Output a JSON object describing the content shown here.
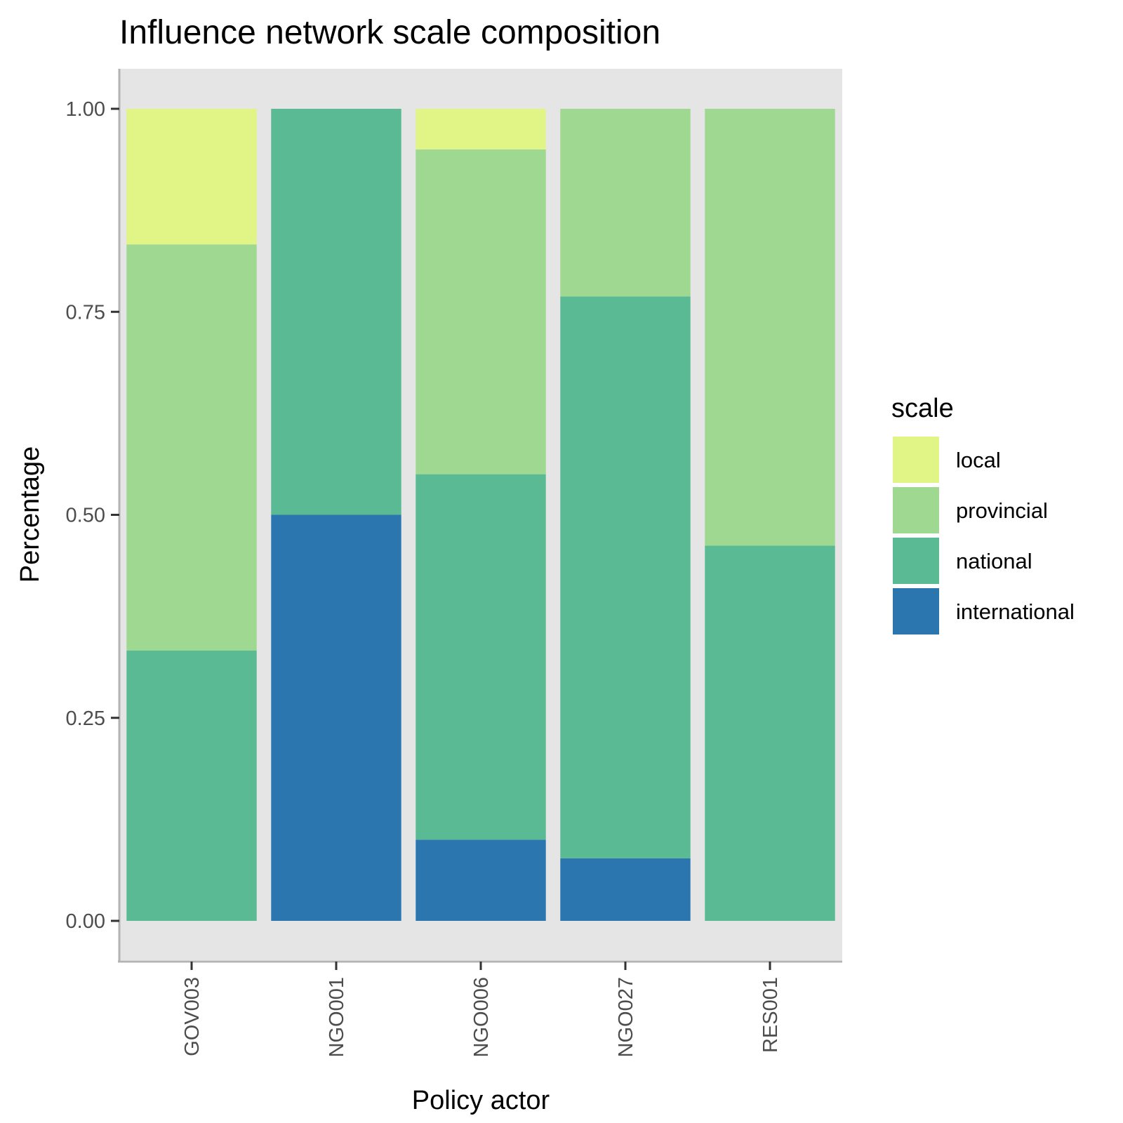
{
  "chart_data": {
    "type": "bar",
    "stacked": true,
    "title": "Influence network scale composition",
    "xlabel": "Policy actor",
    "ylabel": "Percentage",
    "ylim": [
      0,
      1
    ],
    "y_ticks": [
      "0.00",
      "0.25",
      "0.50",
      "0.75",
      "1.00"
    ],
    "categories": [
      "GOV003",
      "NGO001",
      "NGO006",
      "NGO027",
      "RES001"
    ],
    "series": [
      {
        "name": "international",
        "color": "#2c76b0",
        "values": [
          0,
          0.5,
          0.1,
          0.077,
          0
        ]
      },
      {
        "name": "national",
        "color": "#5aba94",
        "values": [
          0.333,
          0.5,
          0.45,
          0.692,
          0.462
        ]
      },
      {
        "name": "provincial",
        "color": "#9ed891",
        "values": [
          0.5,
          0,
          0.4,
          0.231,
          0.538
        ]
      },
      {
        "name": "local",
        "color": "#e0f585",
        "values": [
          0.167,
          0,
          0.05,
          0,
          0
        ]
      }
    ],
    "legend": {
      "title": "scale",
      "position": "right",
      "entries": [
        "local",
        "provincial",
        "national",
        "international"
      ]
    },
    "grid": false,
    "panel_background": "#e5e5e5"
  }
}
